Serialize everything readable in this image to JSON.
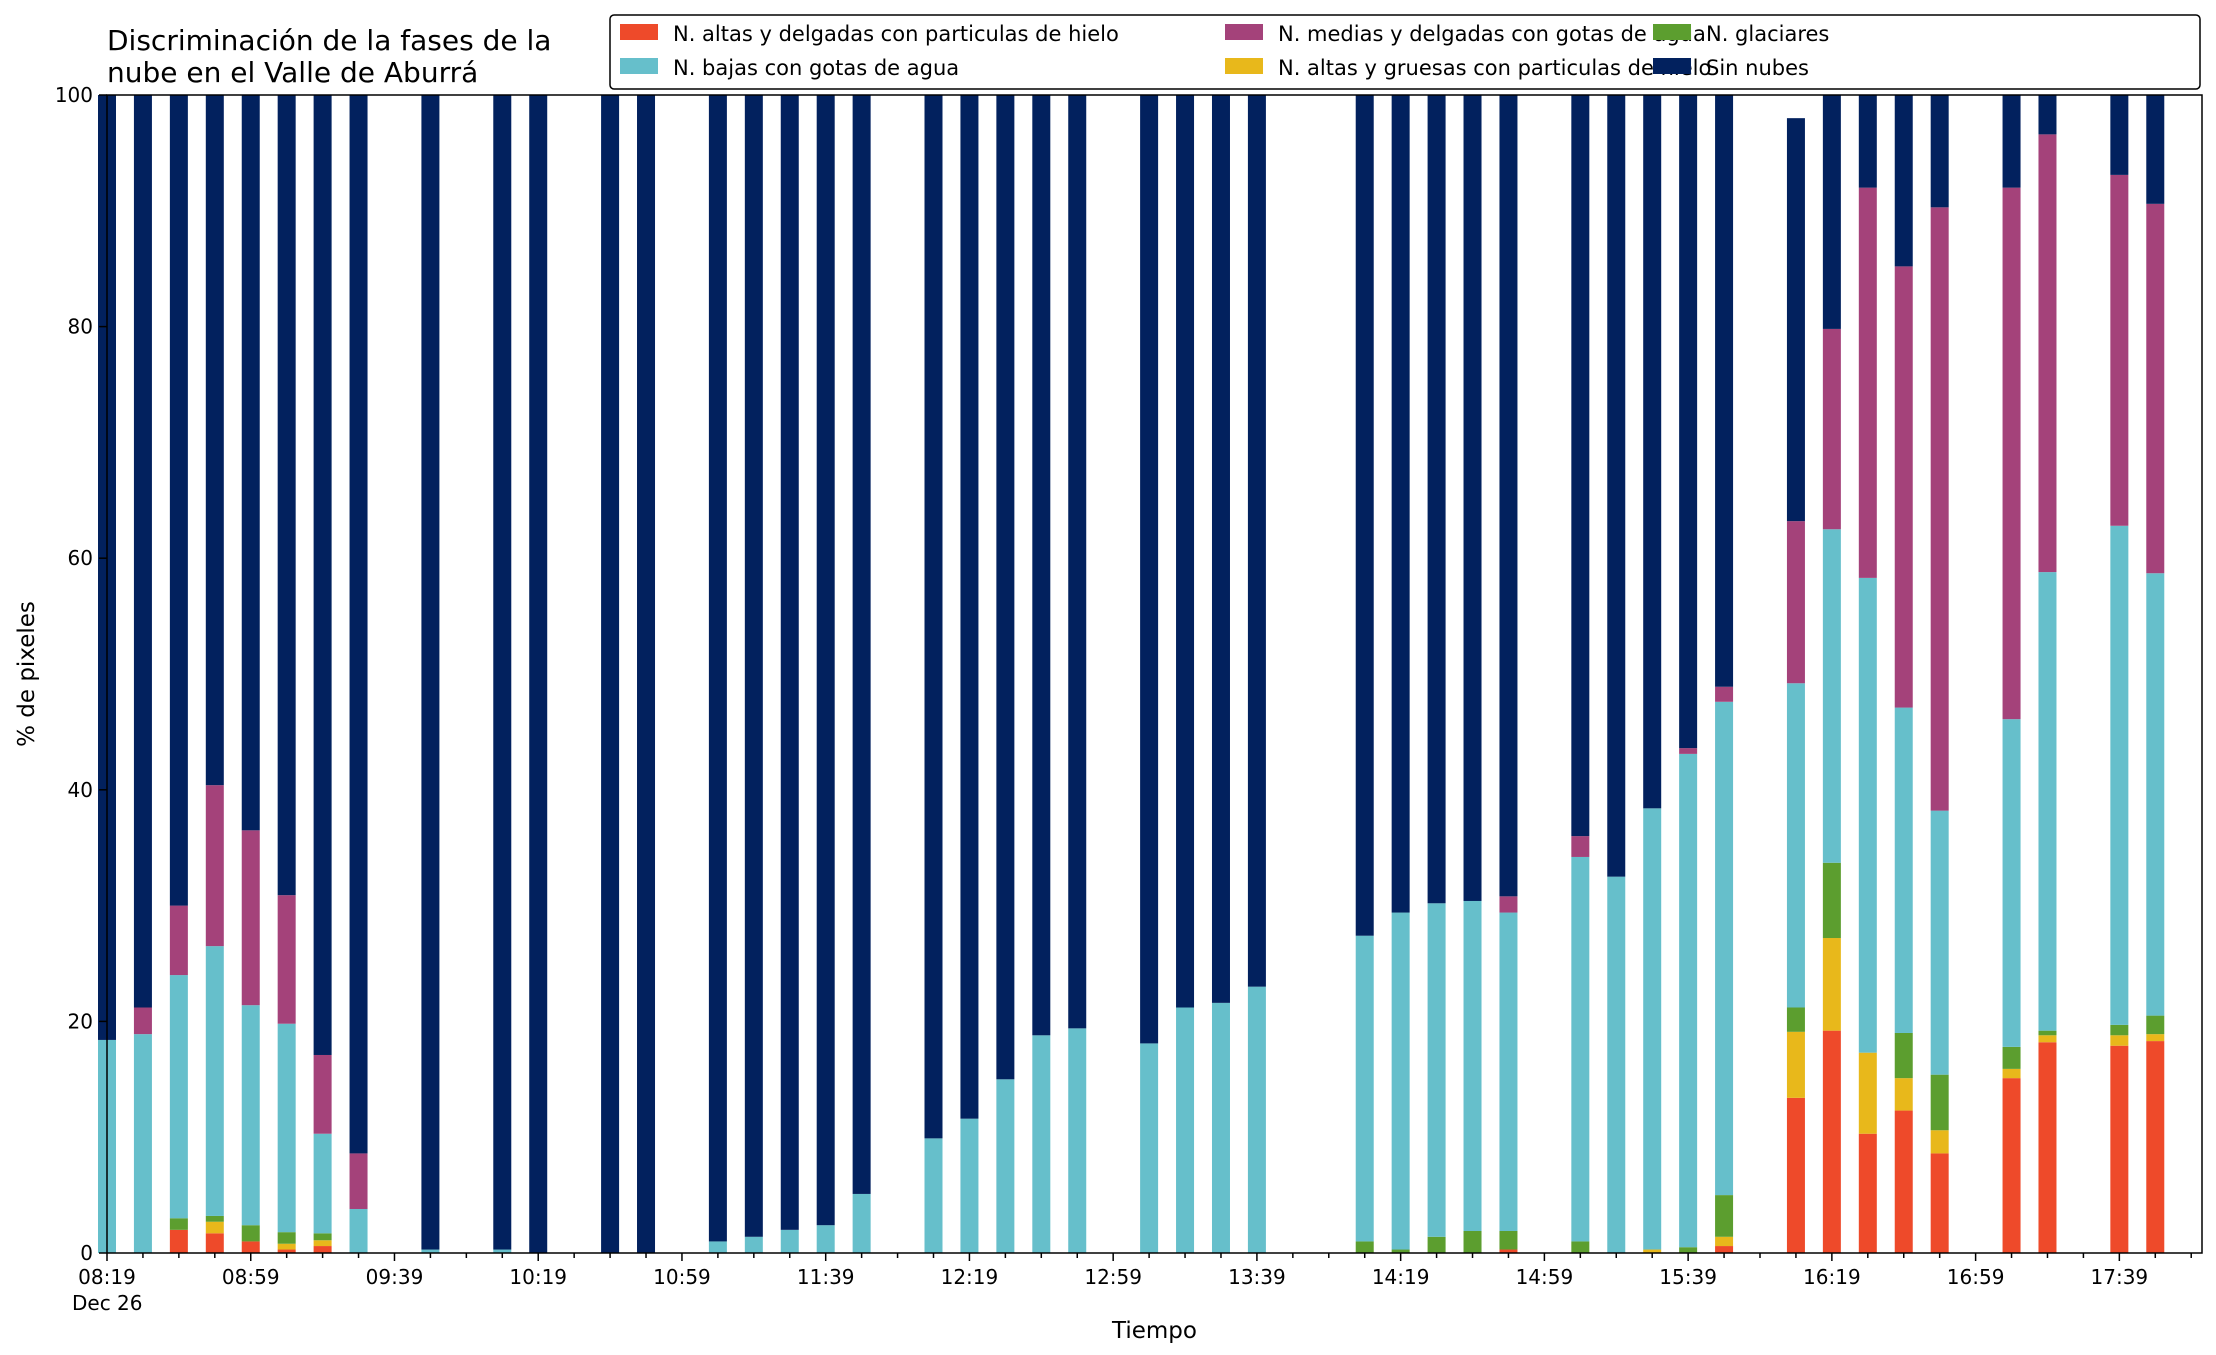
{
  "chart_data": {
    "type": "bar",
    "stacked": true,
    "title": "Discriminación de la fases de la\nnube en el Valle de Aburrá",
    "xlabel": "Tiempo",
    "ylabel": "% de pixeles",
    "ylim": [
      0,
      100
    ],
    "yticks": [
      0,
      20,
      40,
      60,
      80,
      100
    ],
    "x_major_ticks": [
      "08:19",
      "08:59",
      "09:39",
      "10:19",
      "10:59",
      "11:39",
      "12:19",
      "12:59",
      "13:39",
      "14:19",
      "14:59",
      "15:39",
      "16:19",
      "16:59",
      "17:39"
    ],
    "x_date_label": "Dec 26",
    "x_range_minutes": [
      "08:19",
      "18:02"
    ],
    "legend_position": "top-right",
    "series": [
      {
        "name": "N. altas y delgadas con particulas de hielo",
        "color": "#ee4a2a"
      },
      {
        "name": "N. altas y gruesas con particulas de hielo",
        "color": "#e8b81b"
      },
      {
        "name": "N. glaciares",
        "color": "#5c9e2f"
      },
      {
        "name": "N. bajas con gotas de agua",
        "color": "#66bfcb"
      },
      {
        "name": "N. medias y delgadas con gotas de agua",
        "color": "#a4427a"
      },
      {
        "name": "Sin nubes",
        "color": "#02215e"
      }
    ],
    "legend_order": [
      0,
      3,
      4,
      1,
      2,
      5
    ],
    "bars": [
      {
        "time": "08:19",
        "values": [
          0,
          0,
          0,
          18.4,
          0,
          81.6
        ]
      },
      {
        "time": "08:29",
        "values": [
          0,
          0,
          0,
          18.9,
          2.3,
          78.8
        ]
      },
      {
        "time": "08:39",
        "values": [
          2.0,
          0,
          1.0,
          21.0,
          6.0,
          70.0
        ]
      },
      {
        "time": "08:49",
        "values": [
          1.7,
          1.0,
          0.5,
          23.3,
          13.9,
          59.6
        ]
      },
      {
        "time": "08:59",
        "values": [
          1.0,
          0,
          1.4,
          19.0,
          15.1,
          63.5
        ]
      },
      {
        "time": "09:09",
        "values": [
          0.3,
          0.5,
          1.0,
          18.0,
          11.1,
          69.1
        ]
      },
      {
        "time": "09:19",
        "values": [
          0.6,
          0.5,
          0.6,
          8.6,
          6.8,
          82.9
        ]
      },
      {
        "time": "09:29",
        "values": [
          0,
          0,
          0,
          3.8,
          4.8,
          91.4
        ]
      },
      {
        "time": "09:49",
        "values": [
          0,
          0,
          0,
          0.3,
          0,
          99.7
        ]
      },
      {
        "time": "10:09",
        "values": [
          0,
          0,
          0,
          0.3,
          0,
          99.7
        ]
      },
      {
        "time": "10:19",
        "values": [
          0,
          0,
          0,
          0,
          0,
          100
        ]
      },
      {
        "time": "10:39",
        "values": [
          0,
          0,
          0,
          0,
          0,
          100
        ]
      },
      {
        "time": "10:49",
        "values": [
          0,
          0,
          0,
          0,
          0,
          100
        ]
      },
      {
        "time": "11:09",
        "values": [
          0,
          0,
          0,
          1.0,
          0,
          99.0
        ]
      },
      {
        "time": "11:19",
        "values": [
          0,
          0,
          0,
          1.4,
          0,
          98.6
        ]
      },
      {
        "time": "11:29",
        "values": [
          0,
          0,
          0,
          2.0,
          0,
          98.0
        ]
      },
      {
        "time": "11:39",
        "values": [
          0,
          0,
          0,
          2.4,
          0,
          97.6
        ]
      },
      {
        "time": "11:49",
        "values": [
          0,
          0,
          0,
          5.1,
          0,
          94.9
        ]
      },
      {
        "time": "12:09",
        "values": [
          0,
          0,
          0,
          9.9,
          0,
          90.1
        ]
      },
      {
        "time": "12:19",
        "values": [
          0,
          0,
          0,
          11.6,
          0,
          88.4
        ]
      },
      {
        "time": "12:29",
        "values": [
          0,
          0,
          0,
          15.0,
          0,
          85.0
        ]
      },
      {
        "time": "12:39",
        "values": [
          0,
          0,
          0,
          18.8,
          0,
          81.2
        ]
      },
      {
        "time": "12:49",
        "values": [
          0,
          0,
          0,
          19.4,
          0,
          80.6
        ]
      },
      {
        "time": "13:09",
        "values": [
          0,
          0,
          0,
          18.1,
          0,
          81.9
        ]
      },
      {
        "time": "13:19",
        "values": [
          0,
          0,
          0,
          21.2,
          0,
          78.8
        ]
      },
      {
        "time": "13:29",
        "values": [
          0,
          0,
          0,
          21.6,
          0,
          78.4
        ]
      },
      {
        "time": "13:39",
        "values": [
          0,
          0,
          0,
          23.0,
          0,
          77.0
        ]
      },
      {
        "time": "14:09",
        "values": [
          0,
          0,
          1.0,
          26.4,
          0,
          72.6
        ]
      },
      {
        "time": "14:19",
        "values": [
          0,
          0,
          0.3,
          29.1,
          0,
          70.6
        ]
      },
      {
        "time": "14:29",
        "values": [
          0,
          0,
          1.4,
          28.8,
          0,
          69.8
        ]
      },
      {
        "time": "14:39",
        "values": [
          0,
          0,
          1.9,
          28.5,
          0,
          69.6
        ]
      },
      {
        "time": "14:49",
        "values": [
          0.3,
          0,
          1.6,
          27.5,
          1.4,
          69.2
        ]
      },
      {
        "time": "15:09",
        "values": [
          0,
          0,
          1.0,
          33.2,
          1.8,
          64.0
        ]
      },
      {
        "time": "15:19",
        "values": [
          0,
          0,
          0,
          32.5,
          0,
          67.5
        ]
      },
      {
        "time": "15:29",
        "values": [
          0,
          0.3,
          0,
          38.1,
          0,
          61.6
        ]
      },
      {
        "time": "15:39",
        "values": [
          0,
          0,
          0.5,
          42.6,
          0.5,
          56.4
        ]
      },
      {
        "time": "15:49",
        "values": [
          0.6,
          0.8,
          3.6,
          42.6,
          1.3,
          51.1
        ]
      },
      {
        "time": "16:09",
        "values": [
          13.4,
          5.7,
          2.1,
          28.0,
          14.0,
          34.8
        ]
      },
      {
        "time": "16:19",
        "values": [
          19.2,
          8.0,
          6.5,
          28.8,
          17.3,
          20.2
        ]
      },
      {
        "time": "16:29",
        "values": [
          10.3,
          7.0,
          0,
          41.0,
          33.7,
          8.0
        ]
      },
      {
        "time": "16:39",
        "values": [
          12.3,
          2.8,
          3.9,
          28.1,
          38.1,
          14.8
        ]
      },
      {
        "time": "16:49",
        "values": [
          8.6,
          2.0,
          4.8,
          22.8,
          52.1,
          9.7
        ]
      },
      {
        "time": "17:09",
        "values": [
          15.1,
          0.8,
          1.9,
          28.3,
          45.9,
          8.0
        ]
      },
      {
        "time": "17:19",
        "values": [
          18.2,
          0.6,
          0.4,
          39.6,
          37.8,
          3.4
        ]
      },
      {
        "time": "17:39",
        "values": [
          17.9,
          0.9,
          0.9,
          43.1,
          30.3,
          6.9
        ]
      },
      {
        "time": "17:49",
        "values": [
          18.3,
          0.6,
          1.6,
          38.2,
          31.9,
          9.4
        ]
      }
    ]
  }
}
